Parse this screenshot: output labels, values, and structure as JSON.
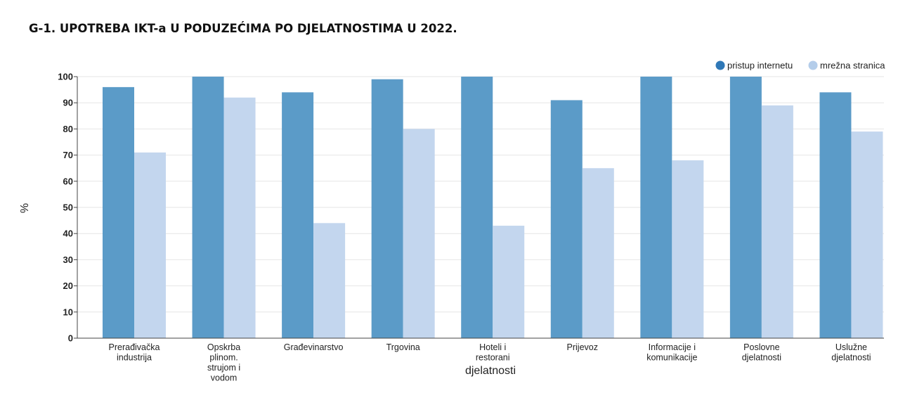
{
  "chart_data": {
    "type": "bar",
    "title": "G-1. UPOTREBA IKT-a U PODUZEĆIMA PO DJELATNOSTIMA U 2022.",
    "xlabel": "djelatnosti",
    "ylabel": "%",
    "ylim": [
      0,
      100
    ],
    "yticks": [
      0,
      10,
      20,
      30,
      40,
      50,
      60,
      70,
      80,
      90,
      100
    ],
    "grid": true,
    "legend_position": "top-right",
    "categories": [
      [
        "Prerađivačka",
        "industrija"
      ],
      [
        "Opskrba",
        "plinom.",
        "strujom i",
        "vodom"
      ],
      [
        "Građevinarstvo"
      ],
      [
        "Trgovina"
      ],
      [
        "Hoteli i",
        "restorani"
      ],
      [
        "Prijevoz"
      ],
      [
        "Informacije i",
        "komunikacije"
      ],
      [
        "Poslovne",
        "djelatnosti"
      ],
      [
        "Uslužne",
        "djelatnosti"
      ]
    ],
    "series": [
      {
        "name": "pristup internetu",
        "color": "#5b9bc8",
        "legend_color": "#2f78b7",
        "values": [
          96,
          100,
          94,
          99,
          100,
          91,
          100,
          100,
          94
        ]
      },
      {
        "name": "mrežna stranica",
        "color": "#c3d6ee",
        "legend_color": "#b4cdea",
        "values": [
          71,
          92,
          44,
          80,
          43,
          65,
          68,
          89,
          79
        ]
      }
    ]
  }
}
